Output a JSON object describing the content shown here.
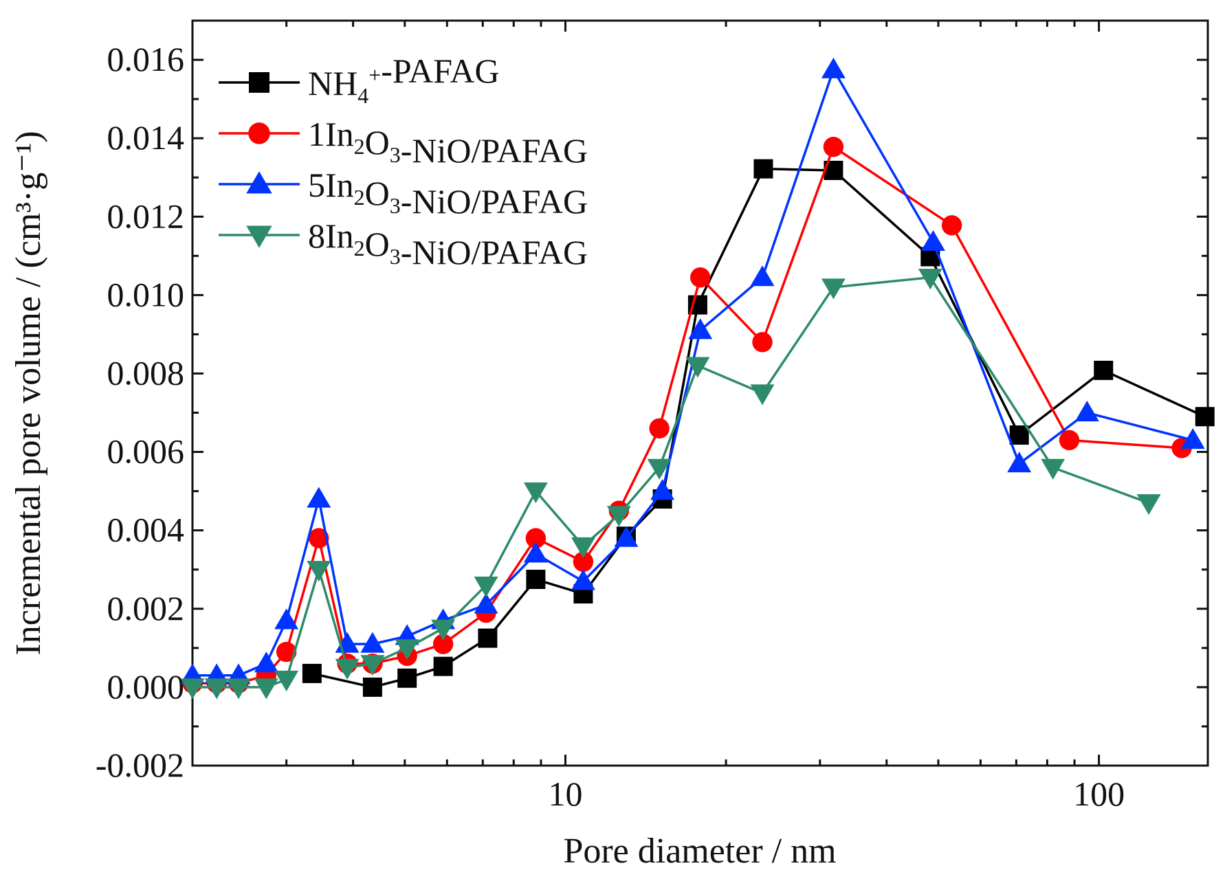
{
  "chart_data": {
    "type": "line",
    "xlabel": "Pore diameter / nm",
    "ylabel": "Incremental pore volume / (cm³·g⁻¹)",
    "x_scale": "log",
    "xlim": [
      2.0,
      160
    ],
    "ylim": [
      -0.002,
      0.017
    ],
    "x_major_ticks": [
      10,
      100
    ],
    "y_ticks": [
      -0.002,
      0.0,
      0.002,
      0.004,
      0.006,
      0.008,
      0.01,
      0.012,
      0.014,
      0.016
    ],
    "y_tick_labels": [
      "-0.002",
      "0.000",
      "0.002",
      "0.004",
      "0.006",
      "0.008",
      "0.010",
      "0.012",
      "0.014",
      "0.016"
    ],
    "x_tick_labels": [
      "10",
      "100"
    ],
    "legend_position": "top-left",
    "series": [
      {
        "name": "NH4+-PAFAG",
        "label_parts": [
          [
            "NH",
            "n"
          ],
          [
            "4",
            "sub"
          ],
          [
            "+",
            "sup"
          ],
          [
            "-PAFAG",
            "n"
          ]
        ],
        "color": "#000000",
        "marker": "square",
        "points": [
          [
            3.35,
            0.00035
          ],
          [
            4.35,
            0.0
          ],
          [
            5.05,
            0.00023
          ],
          [
            5.9,
            0.00053
          ],
          [
            7.15,
            0.00125
          ],
          [
            8.8,
            0.00275
          ],
          [
            10.8,
            0.00238
          ],
          [
            13.0,
            0.00385
          ],
          [
            15.2,
            0.0048
          ],
          [
            17.7,
            0.00975
          ],
          [
            23.5,
            0.01322
          ],
          [
            31.8,
            0.01318
          ],
          [
            48.3,
            0.01098
          ],
          [
            70.9,
            0.00643
          ],
          [
            102,
            0.00808
          ],
          [
            158,
            0.0069
          ]
        ]
      },
      {
        "name": "1In2O3-NiO/PAFAG",
        "label_parts": [
          [
            "1In",
            "n"
          ],
          [
            "2",
            "sub"
          ],
          [
            "O",
            "n"
          ],
          [
            "3",
            "sub"
          ],
          [
            "-NiO/PAFAG",
            "n"
          ]
        ],
        "color": "#ff0000",
        "marker": "circle",
        "points": [
          [
            2.0,
            0.0001
          ],
          [
            2.22,
            0.0001
          ],
          [
            2.44,
            0.0001
          ],
          [
            2.75,
            0.0003
          ],
          [
            3.0,
            0.0009
          ],
          [
            3.45,
            0.0038
          ],
          [
            3.9,
            0.0006
          ],
          [
            4.35,
            0.0006
          ],
          [
            5.05,
            0.0008
          ],
          [
            5.9,
            0.0011
          ],
          [
            7.1,
            0.0019
          ],
          [
            8.8,
            0.0038
          ],
          [
            10.8,
            0.0032
          ],
          [
            12.6,
            0.0045
          ],
          [
            15.0,
            0.0066
          ],
          [
            17.9,
            0.01045
          ],
          [
            23.4,
            0.0088
          ],
          [
            31.8,
            0.01378
          ],
          [
            53.0,
            0.01178
          ],
          [
            88.0,
            0.0063
          ],
          [
            143,
            0.0061
          ]
        ]
      },
      {
        "name": "5In2O3-NiO/PAFAG",
        "label_parts": [
          [
            "5In",
            "n"
          ],
          [
            "2",
            "sub"
          ],
          [
            "O",
            "n"
          ],
          [
            "3",
            "sub"
          ],
          [
            "-NiO/PAFAG",
            "n"
          ]
        ],
        "color": "#0033ff",
        "marker": "triangle-up",
        "points": [
          [
            2.0,
            0.0003
          ],
          [
            2.22,
            0.0003
          ],
          [
            2.44,
            0.0003
          ],
          [
            2.75,
            0.0006
          ],
          [
            3.0,
            0.0017
          ],
          [
            3.45,
            0.0048
          ],
          [
            3.9,
            0.0011
          ],
          [
            4.35,
            0.0011
          ],
          [
            5.05,
            0.0013
          ],
          [
            5.9,
            0.0017
          ],
          [
            7.1,
            0.0021
          ],
          [
            8.8,
            0.0034
          ],
          [
            10.8,
            0.0027
          ],
          [
            13.0,
            0.0038
          ],
          [
            15.2,
            0.005
          ],
          [
            17.9,
            0.0091
          ],
          [
            23.4,
            0.01045
          ],
          [
            31.8,
            0.01575
          ],
          [
            48.9,
            0.01135
          ],
          [
            70.9,
            0.0057
          ],
          [
            95.0,
            0.007
          ],
          [
            150,
            0.0063
          ]
        ]
      },
      {
        "name": "8In2O3-NiO/PAFAG",
        "label_parts": [
          [
            "8In",
            "n"
          ],
          [
            "2",
            "sub"
          ],
          [
            "O",
            "n"
          ],
          [
            "3",
            "sub"
          ],
          [
            "-NiO/PAFAG",
            "n"
          ]
        ],
        "color": "#2e8b6a",
        "marker": "triangle-down",
        "points": [
          [
            2.0,
            0.0
          ],
          [
            2.22,
            0.0
          ],
          [
            2.44,
            0.0
          ],
          [
            2.75,
            0.0
          ],
          [
            3.0,
            0.0002
          ],
          [
            3.45,
            0.003
          ],
          [
            3.9,
            0.0005
          ],
          [
            4.35,
            0.0006
          ],
          [
            5.05,
            0.001
          ],
          [
            5.9,
            0.0015
          ],
          [
            7.1,
            0.0026
          ],
          [
            8.8,
            0.005
          ],
          [
            10.8,
            0.0036
          ],
          [
            12.6,
            0.0044
          ],
          [
            15.0,
            0.0056
          ],
          [
            17.7,
            0.0082
          ],
          [
            23.4,
            0.0075
          ],
          [
            31.8,
            0.0102
          ],
          [
            48.3,
            0.01045
          ],
          [
            82.0,
            0.0056
          ],
          [
            124,
            0.0047
          ]
        ]
      }
    ]
  }
}
